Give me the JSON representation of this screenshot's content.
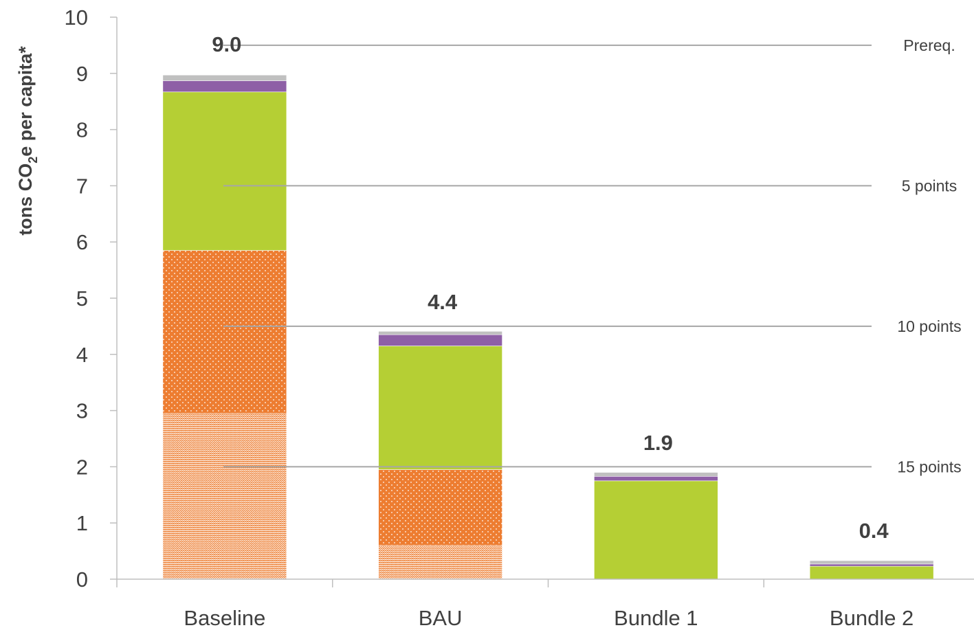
{
  "chart_data": {
    "type": "bar",
    "stacked": true,
    "categories": [
      "Baseline",
      "BAU",
      "Bundle 1",
      "Bundle 2"
    ],
    "ylabel_main": "tons CO",
    "ylabel_sub": "2",
    "ylabel_rest": "e per capita*",
    "ylim": [
      0,
      10
    ],
    "yticks": [
      0,
      1,
      2,
      3,
      4,
      5,
      6,
      7,
      8,
      9,
      10
    ],
    "grid": false,
    "series": [
      {
        "color": "#ED7D31",
        "pattern": "wave",
        "values": [
          2.95,
          0.6,
          0,
          0
        ]
      },
      {
        "color": "#ED7D31",
        "pattern": "dots",
        "values": [
          2.9,
          1.35,
          0,
          0
        ]
      },
      {
        "color": "#B5CF34",
        "pattern": "solid",
        "values": [
          2.82,
          2.2,
          1.75,
          0.23
        ]
      },
      {
        "color": "#8E5FA6",
        "pattern": "solid",
        "values": [
          0.2,
          0.2,
          0.08,
          0.04
        ]
      },
      {
        "color": "#C0C0C0",
        "pattern": "solid",
        "values": [
          0.1,
          0.06,
          0.07,
          0.06
        ]
      }
    ],
    "totals": [
      "9.0",
      "4.4",
      "1.9",
      "0.4"
    ],
    "reference_lines": [
      {
        "value": 9.5,
        "label": "Prereq."
      },
      {
        "value": 7.0,
        "label": "5 points"
      },
      {
        "value": 4.5,
        "label": "10 points"
      },
      {
        "value": 2.0,
        "label": "15 points"
      }
    ],
    "colors": {
      "axis": "#BFBFBF",
      "ref_line": "#A6A6A6",
      "text": "#404040"
    }
  }
}
